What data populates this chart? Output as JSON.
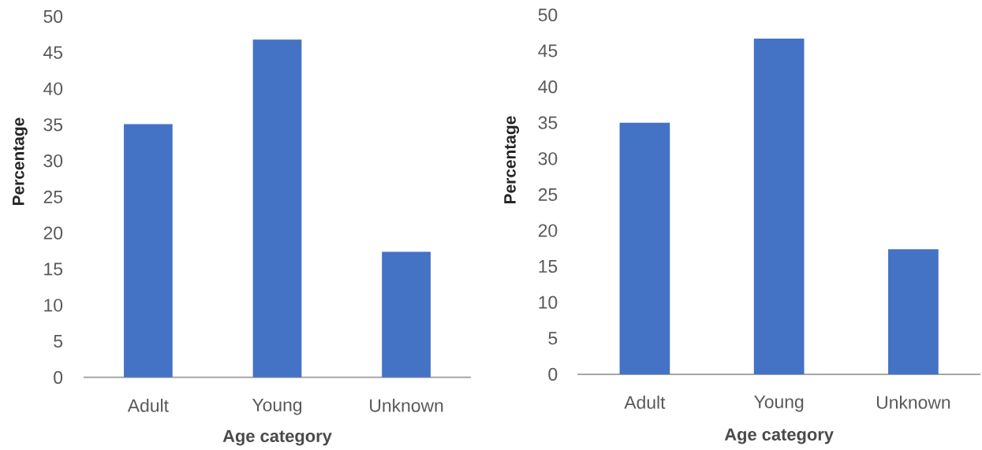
{
  "chart_data": [
    {
      "type": "bar",
      "categories": [
        "Adult",
        "Young",
        "Unknown"
      ],
      "values": [
        35.1,
        46.8,
        17.4
      ],
      "color": "#4472c4",
      "xlabel": "Age category",
      "ylabel": "Percentage",
      "ylim": [
        0,
        50
      ],
      "yticks": [
        0,
        5,
        10,
        15,
        20,
        25,
        30,
        35,
        40,
        45,
        50
      ]
    },
    {
      "type": "bar",
      "categories": [
        "Adult",
        "Young",
        "Unknown"
      ],
      "values": [
        35.0,
        46.7,
        17.4
      ],
      "color": "#4472c4",
      "xlabel": "Age category",
      "ylabel": "Percentage",
      "ylim": [
        0,
        50
      ],
      "yticks": [
        0,
        5,
        10,
        15,
        20,
        25,
        30,
        35,
        40,
        45,
        50
      ]
    }
  ]
}
